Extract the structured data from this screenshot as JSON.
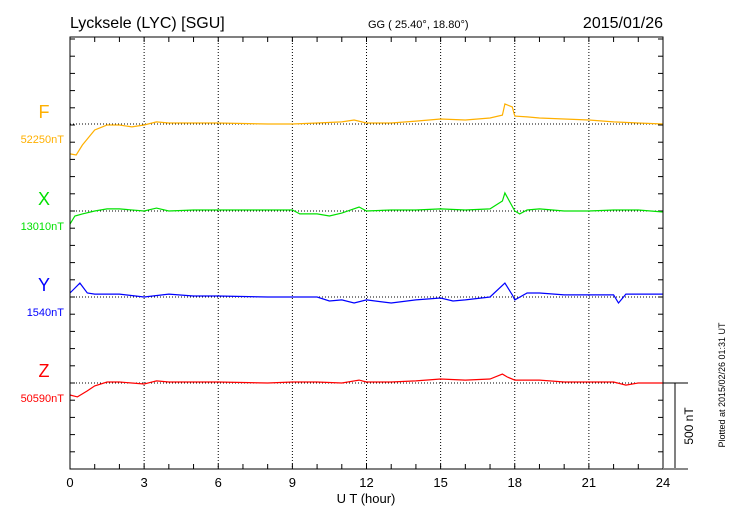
{
  "chart_data": {
    "type": "line",
    "title": "Lycksele (LYC)  [SGU]",
    "coords": "GG ( 25.40°,  18.80°)",
    "date": "2015/01/26",
    "xlabel": "U T (hour)",
    "xlim": [
      0,
      24
    ],
    "xticks": [
      "0",
      "3",
      "6",
      "9",
      "12",
      "15",
      "18",
      "21",
      "24"
    ],
    "scale_label": "500 nT",
    "plotted_note": "Plotted at 2015/02/26 01:31  UT",
    "grid": "dotted vertical every 3 h, dotted baseline per component",
    "series": [
      {
        "name": "F",
        "baseline_label": "52250nT",
        "color": "#ffb000",
        "x": [
          0,
          0.25,
          0.5,
          1,
          1.5,
          2,
          2.5,
          3,
          3.5,
          4,
          6,
          8,
          9,
          10,
          11,
          11.5,
          12,
          13,
          14,
          15,
          16,
          17,
          17.5,
          17.6,
          17.9,
          18,
          18.5,
          19,
          20,
          21,
          22,
          23,
          24
        ],
        "y": [
          -174,
          -180,
          -122,
          -35,
          -6,
          -6,
          -17,
          -6,
          12,
          6,
          6,
          0,
          0,
          6,
          12,
          23,
          6,
          6,
          17,
          29,
          23,
          35,
          52,
          116,
          99,
          46,
          41,
          35,
          29,
          23,
          12,
          6,
          0
        ]
      },
      {
        "name": "X",
        "baseline_label": "13010nT",
        "color": "#00e000",
        "x": [
          0,
          0.2,
          0.5,
          1,
          1.5,
          2,
          3,
          3.5,
          4,
          5,
          6,
          8,
          9,
          9.3,
          10,
          10.5,
          11,
          11.7,
          12,
          13,
          14,
          15,
          16,
          17,
          17.5,
          17.6,
          18,
          18.2,
          18.5,
          19,
          20,
          21,
          22,
          23,
          24
        ],
        "y": [
          -76,
          -29,
          -17,
          0,
          12,
          12,
          0,
          17,
          0,
          6,
          6,
          6,
          6,
          -17,
          -17,
          -29,
          -12,
          23,
          0,
          6,
          6,
          12,
          6,
          12,
          58,
          105,
          0,
          -17,
          6,
          12,
          0,
          0,
          6,
          6,
          -6
        ]
      },
      {
        "name": "Y",
        "baseline_label": "1540nT",
        "color": "#0000ff",
        "x": [
          0,
          0.4,
          0.7,
          1,
          2,
          3,
          4,
          5,
          6,
          8,
          9,
          10,
          10.5,
          11,
          11.5,
          12,
          13,
          14,
          15,
          15.5,
          16,
          17,
          17.6,
          17.9,
          18,
          18.5,
          19,
          20,
          21,
          22,
          22.2,
          22.5,
          23,
          24
        ],
        "y": [
          23,
          81,
          23,
          17,
          17,
          0,
          17,
          6,
          6,
          0,
          0,
          0,
          -23,
          -17,
          -35,
          -17,
          -35,
          -17,
          -6,
          -23,
          -17,
          0,
          81,
          12,
          -17,
          23,
          23,
          12,
          12,
          12,
          -35,
          17,
          17,
          17
        ]
      },
      {
        "name": "Z",
        "baseline_label": "50590nT",
        "color": "#ff0000",
        "x": [
          0,
          0.3,
          0.7,
          1,
          1.5,
          2,
          3,
          3.5,
          4,
          6,
          8,
          9,
          10,
          11,
          11.7,
          12,
          13,
          14,
          15,
          16,
          17,
          17.5,
          17.7,
          18,
          19,
          20,
          21,
          22,
          22.5,
          23,
          24
        ],
        "y": [
          -70,
          -81,
          -46,
          -17,
          6,
          6,
          -6,
          12,
          6,
          6,
          0,
          6,
          6,
          0,
          17,
          6,
          6,
          12,
          23,
          17,
          23,
          52,
          35,
          17,
          17,
          6,
          6,
          6,
          -12,
          0,
          0
        ]
      }
    ]
  }
}
